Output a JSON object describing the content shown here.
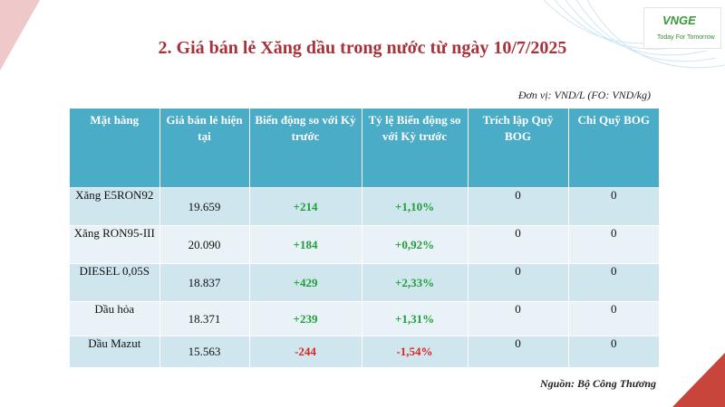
{
  "slide": {
    "title": "2. Giá bán lẻ Xăng dầu trong nước từ ngày 10/7/2025",
    "unit_note": "Đơn vị: VND/L (FO: VND/kg)",
    "source": "Nguồn: Bộ Công Thương"
  },
  "logo": {
    "mark": "VNGE",
    "tagline": "Today For Tomorrow"
  },
  "table": {
    "headers": [
      "Mặt hàng",
      "Giá bán lẻ hiện tại",
      "Biến động so với Kỳ trước",
      "Tỷ lệ Biến động so với Kỳ trước",
      "Trích lập Quỹ BOG",
      "Chi Quỹ BOG"
    ],
    "rows": [
      {
        "product": "Xăng E5RON92",
        "price": "19.659",
        "change": "+214",
        "pct": "+1,10%",
        "bog_in": "0",
        "bog_out": "0"
      },
      {
        "product": "Xăng RON95-III",
        "price": "20.090",
        "change": "+184",
        "pct": "+0,92%",
        "bog_in": "0",
        "bog_out": "0"
      },
      {
        "product": "DIESEL 0,05S",
        "price": "18.837",
        "change": "+429",
        "pct": "+2,33%",
        "bog_in": "0",
        "bog_out": "0"
      },
      {
        "product": "Dầu hỏa",
        "price": "18.371",
        "change": "+239",
        "pct": "+1,31%",
        "bog_in": "0",
        "bog_out": "0"
      },
      {
        "product": "Dầu Mazut",
        "price": "15.563",
        "change": "-244",
        "pct": "-1,54%",
        "bog_in": "0",
        "bog_out": "0"
      }
    ]
  },
  "colors": {
    "title": "#a8323a",
    "header_bg": "#4aacc6",
    "row_odd": "#d0e6ee",
    "row_even": "#e9f2f6",
    "positive": "#1e9e3a",
    "negative": "#dd2222"
  }
}
